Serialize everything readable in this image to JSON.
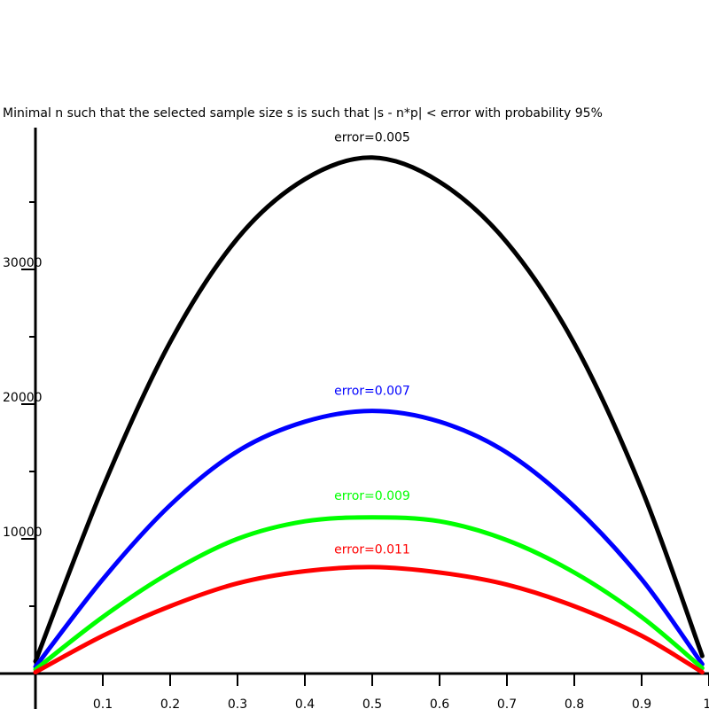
{
  "chart_data": {
    "type": "line",
    "title": "Minimal n such that the selected sample size s is such that |s - n*p| < error with probability 95%",
    "xlabel": "",
    "ylabel": "",
    "xlim": [
      0,
      1.0
    ],
    "ylim": [
      0,
      40000
    ],
    "grid": false,
    "x_ticks": [
      {
        "value": 0.1,
        "label": "0.1"
      },
      {
        "value": 0.2,
        "label": "0.2"
      },
      {
        "value": 0.3,
        "label": "0.3"
      },
      {
        "value": 0.4,
        "label": "0.4"
      },
      {
        "value": 0.5,
        "label": "0.5"
      },
      {
        "value": 0.6,
        "label": "0.6"
      },
      {
        "value": 0.7,
        "label": "0.7"
      },
      {
        "value": 0.8,
        "label": "0.8"
      },
      {
        "value": 0.9,
        "label": "0.9"
      },
      {
        "value": 1.0,
        "label": "1."
      }
    ],
    "y_ticks": [
      {
        "value": 5000,
        "label": ""
      },
      {
        "value": 10000,
        "label": "10000"
      },
      {
        "value": 15000,
        "label": ""
      },
      {
        "value": 20000,
        "label": "20000"
      },
      {
        "value": 25000,
        "label": ""
      },
      {
        "value": 30000,
        "label": "30000"
      },
      {
        "value": 35000,
        "label": ""
      }
    ],
    "x": [
      0,
      0.1,
      0.2,
      0.3,
      0.4,
      0.5,
      0.6,
      0.7,
      0.8,
      0.9,
      0.99
    ],
    "series": [
      {
        "name": "error=0.005",
        "color": "#000000",
        "label_x": 0.5,
        "label_y": 39500,
        "values": [
          900,
          13800,
          24600,
          32300,
          36700,
          38300,
          36500,
          32000,
          24500,
          13700,
          1300
        ]
      },
      {
        "name": "error=0.007",
        "color": "#0000ff",
        "label_x": 0.5,
        "label_y": 20700,
        "values": [
          500,
          7000,
          12500,
          16500,
          18700,
          19500,
          18700,
          16400,
          12400,
          7000,
          700
        ]
      },
      {
        "name": "error=0.009",
        "color": "#00ff00",
        "label_x": 0.5,
        "label_y": 12900,
        "values": [
          300,
          4200,
          7500,
          10000,
          11300,
          11600,
          11300,
          9900,
          7500,
          4200,
          400
        ]
      },
      {
        "name": "error=0.011",
        "color": "#ff0000",
        "label_x": 0.5,
        "label_y": 8900,
        "values": [
          100,
          2800,
          5000,
          6700,
          7600,
          7900,
          7500,
          6600,
          5000,
          2800,
          100
        ]
      }
    ]
  }
}
